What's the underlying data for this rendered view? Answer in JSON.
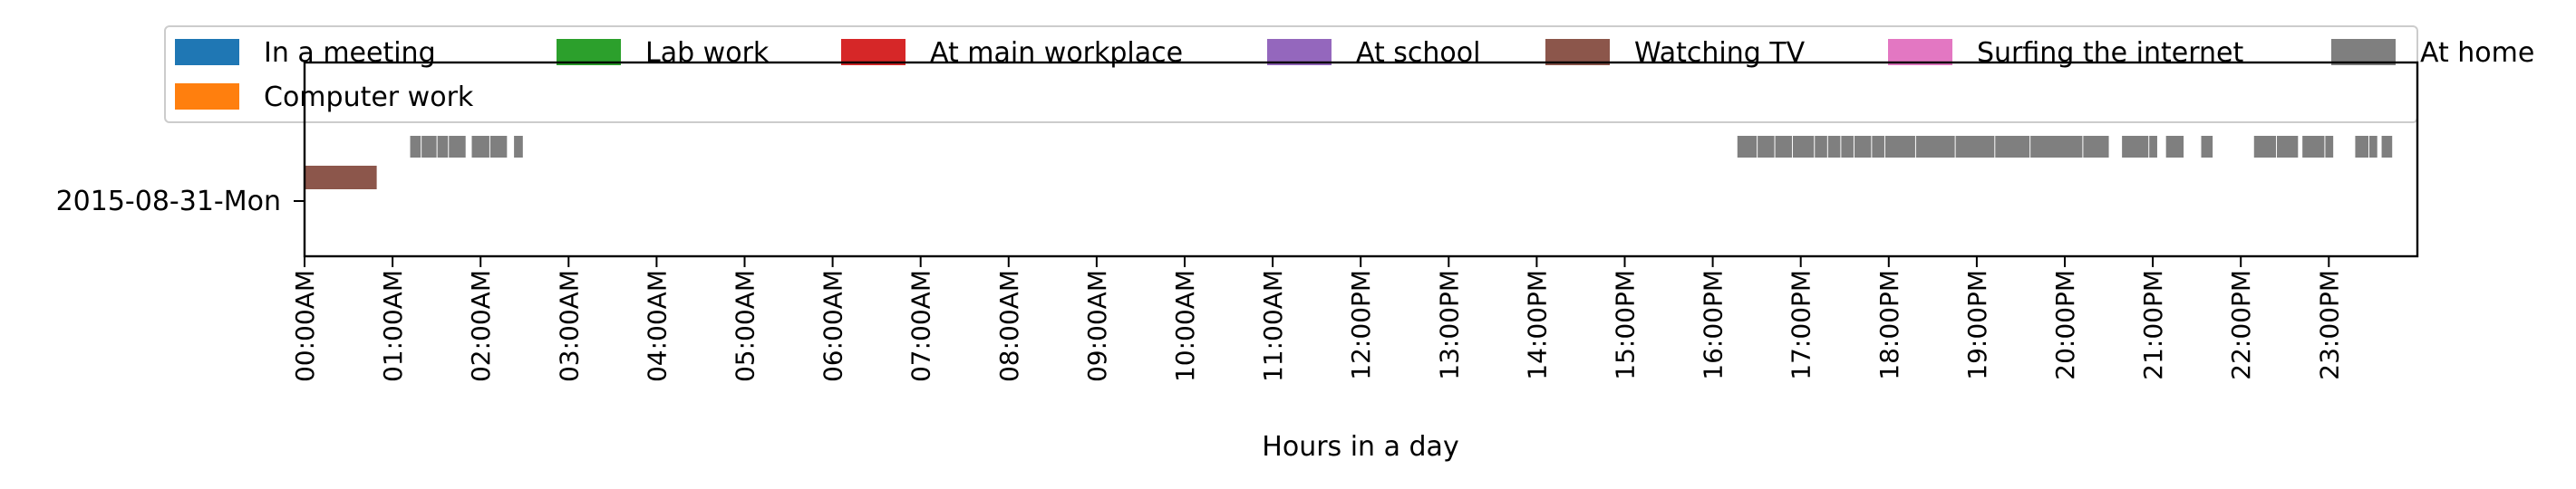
{
  "chart_data": {
    "type": "timeline",
    "xlabel": "Hours in a day",
    "ylabel": "",
    "xlim": [
      0,
      24
    ],
    "y_categories": [
      "2015-08-31-Mon"
    ],
    "x_tick_labels": [
      "00:00AM",
      "01:00AM",
      "02:00AM",
      "03:00AM",
      "04:00AM",
      "05:00AM",
      "06:00AM",
      "07:00AM",
      "08:00AM",
      "09:00AM",
      "10:00AM",
      "11:00AM",
      "12:00PM",
      "13:00PM",
      "14:00PM",
      "15:00PM",
      "16:00PM",
      "17:00PM",
      "18:00PM",
      "19:00PM",
      "20:00PM",
      "21:00PM",
      "22:00PM",
      "23:00PM"
    ],
    "grid": false,
    "legend_position": "top",
    "series": [
      {
        "name": "In a meeting",
        "color": "#1f77b4",
        "lane": 0,
        "segments": []
      },
      {
        "name": "Lab work",
        "color": "#2ca02c",
        "lane": 0,
        "segments": []
      },
      {
        "name": "At main workplace",
        "color": "#d62728",
        "lane": 0,
        "segments": []
      },
      {
        "name": "At school",
        "color": "#9467bd",
        "lane": 0,
        "segments": []
      },
      {
        "name": "Watching TV",
        "color": "#8c564b",
        "lane": 1,
        "segments": [
          [
            0.0,
            0.82
          ]
        ]
      },
      {
        "name": "Surfing the internet",
        "color": "#e377c2",
        "lane": 0,
        "segments": []
      },
      {
        "name": "At home",
        "color": "#7f7f7f",
        "lane": 2,
        "segments": [
          [
            1.2,
            1.32
          ],
          [
            1.33,
            1.5
          ],
          [
            1.51,
            1.63
          ],
          [
            1.64,
            1.83
          ],
          [
            1.9,
            2.1
          ],
          [
            2.11,
            2.3
          ],
          [
            2.38,
            2.48
          ],
          [
            16.28,
            16.5
          ],
          [
            16.51,
            16.7
          ],
          [
            16.71,
            16.9
          ],
          [
            16.91,
            17.15
          ],
          [
            17.16,
            17.3
          ],
          [
            17.31,
            17.45
          ],
          [
            17.46,
            17.6
          ],
          [
            17.61,
            17.8
          ],
          [
            17.81,
            17.95
          ],
          [
            17.96,
            18.3
          ],
          [
            18.31,
            18.75
          ],
          [
            18.76,
            19.2
          ],
          [
            19.21,
            19.6
          ],
          [
            19.61,
            20.2
          ],
          [
            20.21,
            20.5
          ],
          [
            20.65,
            20.95
          ],
          [
            20.96,
            21.05
          ],
          [
            21.15,
            21.35
          ],
          [
            21.55,
            21.68
          ],
          [
            22.15,
            22.4
          ],
          [
            22.41,
            22.65
          ],
          [
            22.7,
            22.95
          ],
          [
            22.96,
            23.05
          ],
          [
            23.3,
            23.45
          ],
          [
            23.46,
            23.55
          ],
          [
            23.6,
            23.72
          ]
        ]
      },
      {
        "name": "Computer work",
        "color": "#ff7f0e",
        "lane": 0,
        "segments": []
      }
    ]
  }
}
